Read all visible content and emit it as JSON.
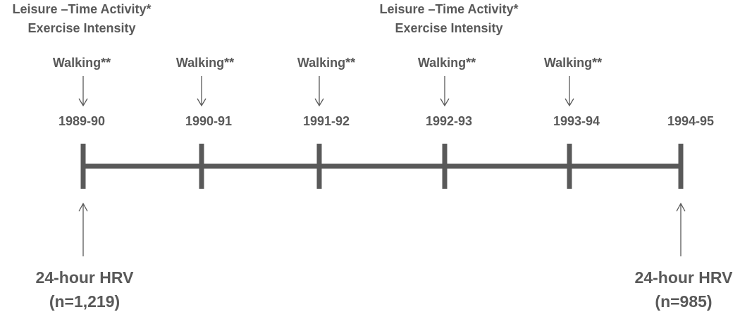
{
  "annotations_top": [
    {
      "line1": "Leisure –Time Activity*",
      "line2": "Exercise Intensity"
    },
    {
      "line1": "Leisure –Time Activity*",
      "line2": "Exercise Intensity"
    }
  ],
  "points": [
    {
      "year": "1989-90",
      "walking": "Walking**"
    },
    {
      "year": "1990-91",
      "walking": "Walking**"
    },
    {
      "year": "1991-92",
      "walking": "Walking**"
    },
    {
      "year": "1992-93",
      "walking": "Walking**"
    },
    {
      "year": "1993-94",
      "walking": "Walking**"
    },
    {
      "year": "1994-95"
    }
  ],
  "measurements": [
    {
      "label": "24-hour HRV",
      "n": "(n=1,219)"
    },
    {
      "label": "24-hour HRV",
      "n": "(n=985)"
    }
  ]
}
